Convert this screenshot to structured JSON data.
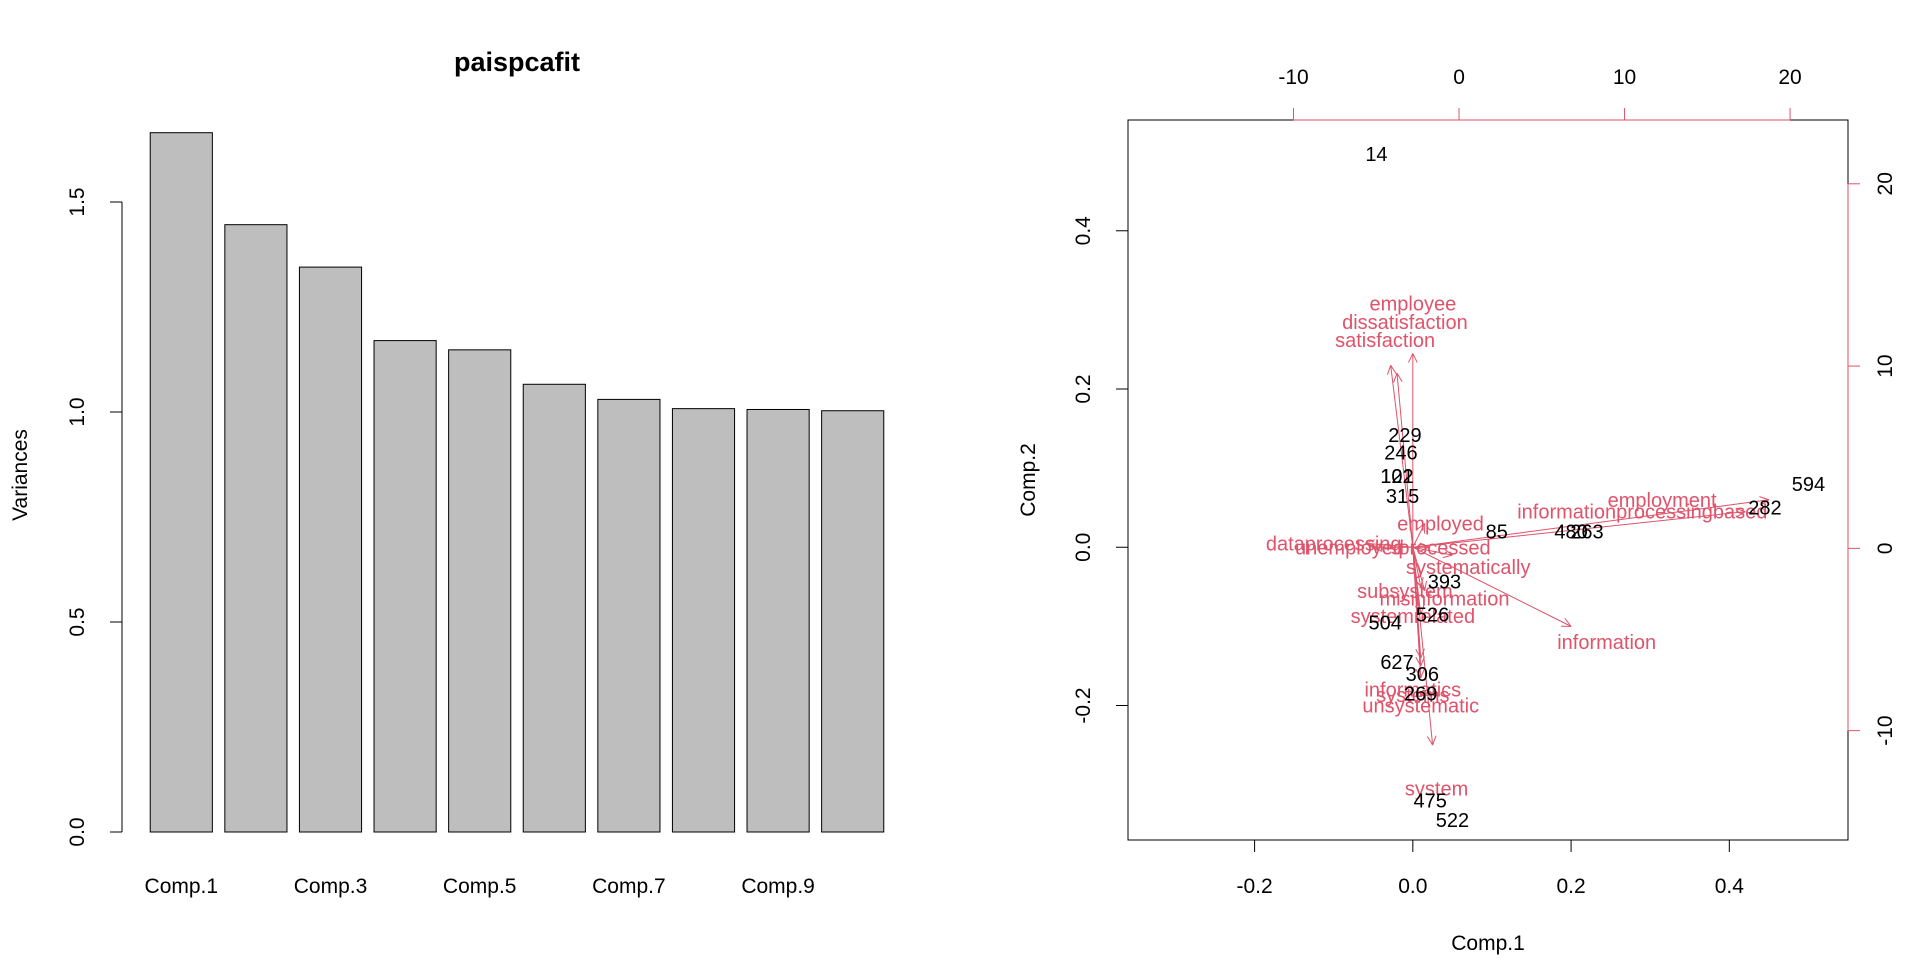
{
  "colors": {
    "background": "#ffffff",
    "bar_fill": "#bebebe",
    "bar_stroke": "#000000",
    "axis": "#000000",
    "loading_color": "#df536b",
    "observation_color": "#000000"
  },
  "chart_data": [
    {
      "type": "bar",
      "title": "paispcafit",
      "xlabel": "",
      "ylabel": "Variances",
      "categories": [
        "Comp.1",
        "Comp.2",
        "Comp.3",
        "Comp.4",
        "Comp.5",
        "Comp.6",
        "Comp.7",
        "Comp.8",
        "Comp.9",
        "Comp.10"
      ],
      "category_labels_shown": [
        "Comp.1",
        "",
        "Comp.3",
        "",
        "Comp.5",
        "",
        "Comp.7",
        "",
        "Comp.9",
        ""
      ],
      "values": [
        1.665,
        1.446,
        1.345,
        1.17,
        1.148,
        1.066,
        1.03,
        1.008,
        1.006,
        1.003
      ],
      "ylim": [
        0,
        1.7
      ],
      "y_ticks": [
        0.0,
        0.5,
        1.0,
        1.5
      ],
      "y_tick_labels": [
        "0.0",
        "0.5",
        "1.0",
        "1.5"
      ],
      "grid": false,
      "legend": "none"
    },
    {
      "type": "scatter",
      "subtype": "biplot",
      "title": "",
      "xlabel": "Comp.1",
      "ylabel": "Comp.2",
      "xlim": [
        -0.36,
        0.55
      ],
      "ylim": [
        -0.37,
        0.54
      ],
      "x_ticks": [
        -0.2,
        0.0,
        0.2,
        0.4
      ],
      "x_tick_labels": [
        "-0.2",
        "0.0",
        "0.2",
        "0.4"
      ],
      "y_ticks": [
        -0.2,
        0.0,
        0.2,
        0.4
      ],
      "y_tick_labels": [
        "-0.2",
        "0.0",
        "0.2",
        "0.4"
      ],
      "top_axis": {
        "xlim": [
          -20.0,
          23.5
        ],
        "ticks": [
          -10,
          0,
          10,
          20
        ],
        "tick_labels": [
          "-10",
          "0",
          "10",
          "20"
        ]
      },
      "right_axis": {
        "ylim": [
          -16.0,
          23.5
        ],
        "ticks": [
          -10,
          0,
          10,
          20
        ],
        "tick_labels": [
          "-10",
          "0",
          "10",
          "20"
        ]
      },
      "grid": false,
      "legend": "none",
      "observations": [
        {
          "label": "14",
          "x": -0.046,
          "y": 0.497
        },
        {
          "label": "229",
          "x": -0.01,
          "y": 0.142
        },
        {
          "label": "246",
          "x": -0.015,
          "y": 0.12
        },
        {
          "label": "122",
          "x": -0.02,
          "y": 0.09
        },
        {
          "label": "315",
          "x": -0.013,
          "y": 0.065
        },
        {
          "label": "101",
          "x": -0.02,
          "y": 0.09
        },
        {
          "label": "85",
          "x": 0.106,
          "y": 0.02
        },
        {
          "label": "480",
          "x": 0.2,
          "y": 0.02
        },
        {
          "label": "263",
          "x": 0.22,
          "y": 0.02
        },
        {
          "label": "594",
          "x": 0.5,
          "y": 0.08
        },
        {
          "label": "282",
          "x": 0.445,
          "y": 0.05
        },
        {
          "label": "393",
          "x": 0.04,
          "y": -0.043
        },
        {
          "label": "526",
          "x": 0.025,
          "y": -0.085
        },
        {
          "label": "504",
          "x": -0.035,
          "y": -0.095
        },
        {
          "label": "627",
          "x": -0.02,
          "y": -0.145
        },
        {
          "label": "306",
          "x": 0.012,
          "y": -0.16
        },
        {
          "label": "269",
          "x": 0.01,
          "y": -0.185
        },
        {
          "label": "475",
          "x": 0.022,
          "y": -0.32
        },
        {
          "label": "522",
          "x": 0.05,
          "y": -0.345
        }
      ],
      "loadings": [
        {
          "label": "employee",
          "x": 0.0,
          "y": 0.245,
          "lx": 0.0,
          "ly": 0.308
        },
        {
          "label": "dissatisfaction",
          "x": -0.028,
          "y": 0.23,
          "lx": -0.01,
          "ly": 0.285
        },
        {
          "label": "satisfaction",
          "x": -0.02,
          "y": 0.22,
          "lx": -0.035,
          "ly": 0.262
        },
        {
          "label": "employment",
          "x": 0.45,
          "y": 0.06,
          "lx": 0.315,
          "ly": 0.06
        },
        {
          "label": "informationprocessingbased",
          "x": 0.42,
          "y": 0.045,
          "lx": 0.29,
          "ly": 0.045
        },
        {
          "label": "employed",
          "x": 0.015,
          "y": 0.03,
          "lx": 0.035,
          "ly": 0.03
        },
        {
          "label": "information",
          "x": 0.2,
          "y": -0.1,
          "lx": 0.245,
          "ly": -0.12
        },
        {
          "label": "systematically",
          "x": 0.05,
          "y": -0.01,
          "lx": 0.07,
          "ly": -0.025
        },
        {
          "label": "subsystem",
          "x": 0.01,
          "y": -0.05,
          "lx": -0.01,
          "ly": -0.055
        },
        {
          "label": "misinformation",
          "x": 0.015,
          "y": -0.055,
          "lx": 0.04,
          "ly": -0.065
        },
        {
          "label": "systemrelated",
          "x": 0.01,
          "y": -0.085,
          "lx": 0.0,
          "ly": -0.087
        },
        {
          "label": "informatics",
          "x": 0.01,
          "y": -0.14,
          "lx": 0.0,
          "ly": -0.18
        },
        {
          "label": "systems",
          "x": 0.01,
          "y": -0.15,
          "lx": 0.0,
          "ly": -0.187
        },
        {
          "label": "unsystematic",
          "x": 0.01,
          "y": -0.165,
          "lx": 0.01,
          "ly": -0.2
        },
        {
          "label": "system",
          "x": 0.025,
          "y": -0.25,
          "lx": 0.03,
          "ly": -0.305
        },
        {
          "label": "unemployed",
          "x": -0.05,
          "y": 0.0,
          "lx": -0.08,
          "ly": 0.0
        },
        {
          "label": "dataprocessing",
          "x": -0.06,
          "y": 0.005,
          "lx": -0.1,
          "ly": 0.005
        },
        {
          "label": "processed",
          "x": 0.02,
          "y": 0.0,
          "lx": 0.04,
          "ly": 0.0
        }
      ]
    }
  ]
}
